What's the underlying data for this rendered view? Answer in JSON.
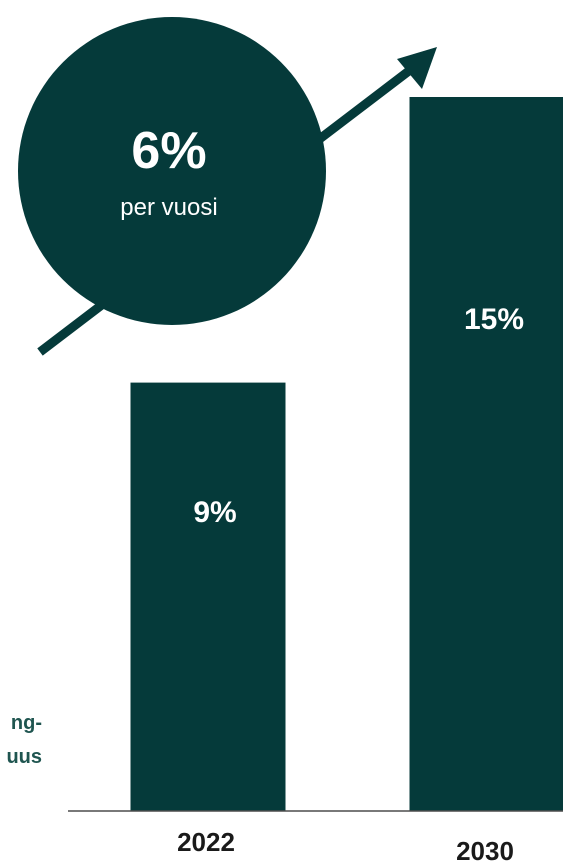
{
  "chart_data": {
    "type": "bar",
    "categories": [
      "2022",
      "2030"
    ],
    "values": [
      9,
      15
    ],
    "data_labels": [
      "9%",
      "15%"
    ],
    "ylim": [
      0,
      20
    ],
    "grid": false,
    "side_label": [
      "ng-",
      "uus"
    ]
  },
  "callout": {
    "value": "6%",
    "caption": "per vuosi"
  },
  "colors": {
    "bar": "#053a3a",
    "callout": "#053a3a",
    "arrow": "#053a3a",
    "side_label": "#1f5550"
  },
  "icons": {
    "growth_arrow": "trend-up-arrow-icon"
  }
}
